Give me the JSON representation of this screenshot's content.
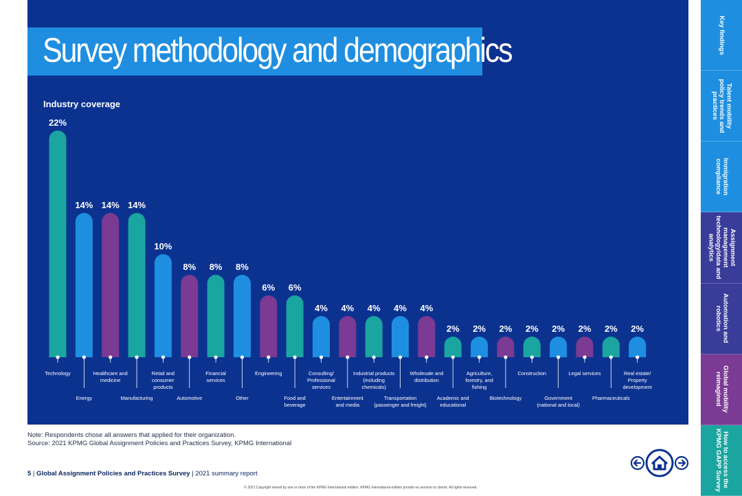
{
  "title": "Survey methodology and demographics",
  "chart_data": {
    "type": "bar",
    "title": "Industry coverage",
    "ylim": [
      0,
      22
    ],
    "value_suffix": "%",
    "categories": [
      "Technology",
      "Energy",
      "Healthcare and medicine",
      "Manufacturing",
      "Retail and consumer products",
      "Automotive",
      "Financial services",
      "Other",
      "Engineering",
      "Food and beverage",
      "Consulting/ Professional services",
      "Entertainment and media",
      "Industrial products (including chemicals)",
      "Transportation (passenger and freight)",
      "Wholesale and distribution",
      "Academic and educational",
      "Agriculture, forestry, and fishing",
      "Biotechnology",
      "Construction",
      "Government (national and local)",
      "Legal services",
      "Pharmaceuticals",
      "Real estate/ Property development"
    ],
    "values": [
      22,
      14,
      14,
      14,
      10,
      8,
      8,
      8,
      6,
      6,
      4,
      4,
      4,
      4,
      4,
      2,
      2,
      2,
      2,
      2,
      2,
      2,
      2
    ],
    "label_lines": [
      [
        "Technology"
      ],
      [
        "Energy"
      ],
      [
        "Healthcare and",
        "medicine"
      ],
      [
        "Manufacturing"
      ],
      [
        "Retail and",
        "consumer",
        "products"
      ],
      [
        "Automotive"
      ],
      [
        "Financial",
        "services"
      ],
      [
        "Other"
      ],
      [
        "Engineering"
      ],
      [
        "Food and",
        "beverage"
      ],
      [
        "Consulting/",
        "Professional",
        "services"
      ],
      [
        "Entertainment",
        "and media"
      ],
      [
        "Industrial products",
        "(including",
        "chemicals)"
      ],
      [
        "Transportation",
        "(passenger and freight)"
      ],
      [
        "Wholesale and",
        "distribution"
      ],
      [
        "Academic and",
        "educational"
      ],
      [
        "Agriculture,",
        "forestry, and",
        "fishing"
      ],
      [
        "Biotechnology"
      ],
      [
        "Construction"
      ],
      [
        "Government",
        "(national and local)"
      ],
      [
        "Legal services"
      ],
      [
        "Pharmaceuticals"
      ],
      [
        "Real estate/",
        "Property",
        "development"
      ]
    ],
    "colors": [
      "#1aa5a0",
      "#1e8fe0",
      "#7b3a93",
      "#1aa5a0",
      "#1e8fe0",
      "#7b3a93",
      "#1aa5a0",
      "#1e8fe0",
      "#7b3a93",
      "#1aa5a0",
      "#1e8fe0",
      "#7b3a93",
      "#1aa5a0",
      "#1e8fe0",
      "#7b3a93",
      "#1aa5a0",
      "#1e8fe0",
      "#7b3a93",
      "#1aa5a0",
      "#1e8fe0",
      "#7b3a93",
      "#1aa5a0",
      "#1e8fe0"
    ]
  },
  "notes": {
    "line1": "Note: Respondents chose all answers that applied for their organization.",
    "line2": "Source: 2021 KPMG Global Assignment Policies and Practices Survey, KPMG International"
  },
  "footer": {
    "page": "5",
    "sep1": " | ",
    "report": "Global Assignment Policies and Practices Survey",
    "sep2": " | ",
    "edition": "2021 summary report"
  },
  "copyright": "© 2021 Copyright owned by one or more of the KPMG International entities. KPMG International entities provide no services to clients. All rights reserved.",
  "sidebar": [
    {
      "label": "Key findings",
      "color": "#1e8fe0"
    },
    {
      "label": "Talent mobility policy trends and practices",
      "color": "#1e8fe0"
    },
    {
      "label": "Immigration compliance",
      "color": "#1e8fe0"
    },
    {
      "label": "Assignment management technology/data and analytics",
      "color": "#3a3c9a"
    },
    {
      "label": "Automation and robotics",
      "color": "#3a3c9a"
    },
    {
      "label": "Global mobility reimagined",
      "color": "#7b3a93"
    },
    {
      "label": "How to access the KPMG GAPP Survey",
      "color": "#1aa5a0"
    }
  ],
  "nav": {
    "prev_icon": "arrow-left-icon",
    "home_icon": "home-icon",
    "next_icon": "arrow-right-icon",
    "color": "#0c3290"
  }
}
